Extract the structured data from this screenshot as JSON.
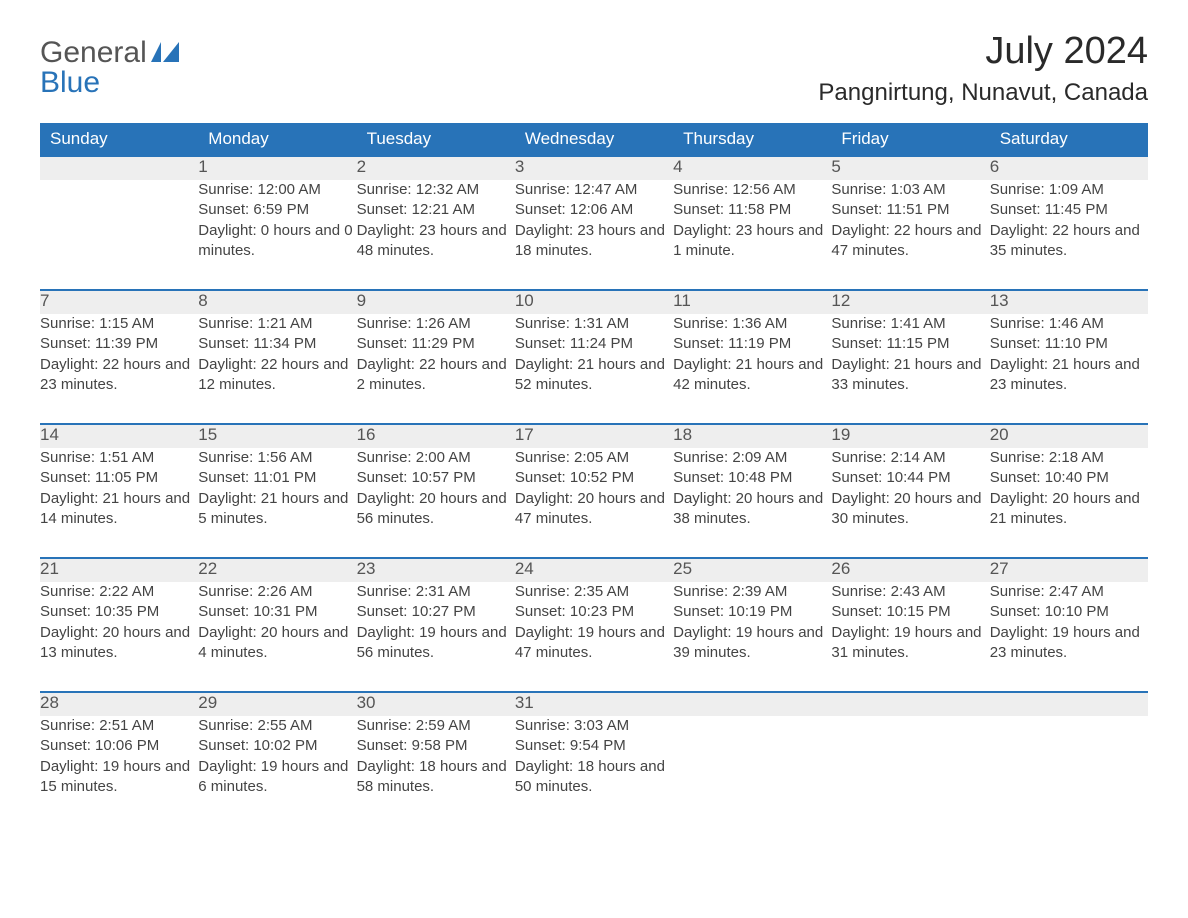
{
  "logo": {
    "word1": "General",
    "word2": "Blue"
  },
  "title": "July 2024",
  "location": "Pangnirtung, Nunavut, Canada",
  "colors": {
    "header_bg": "#2873b8",
    "header_text": "#ffffff",
    "daynum_bg": "#eeeeee",
    "daynum_border": "#2873b8",
    "body_text": "#3a3a3a",
    "page_bg": "#ffffff"
  },
  "day_headers": [
    "Sunday",
    "Monday",
    "Tuesday",
    "Wednesday",
    "Thursday",
    "Friday",
    "Saturday"
  ],
  "weeks": [
    [
      null,
      {
        "n": "1",
        "sunrise": "12:00 AM",
        "sunset": "6:59 PM",
        "daylight": "0 hours and 0 minutes."
      },
      {
        "n": "2",
        "sunrise": "12:32 AM",
        "sunset": "12:21 AM",
        "daylight": "23 hours and 48 minutes."
      },
      {
        "n": "3",
        "sunrise": "12:47 AM",
        "sunset": "12:06 AM",
        "daylight": "23 hours and 18 minutes."
      },
      {
        "n": "4",
        "sunrise": "12:56 AM",
        "sunset": "11:58 PM",
        "daylight": "23 hours and 1 minute."
      },
      {
        "n": "5",
        "sunrise": "1:03 AM",
        "sunset": "11:51 PM",
        "daylight": "22 hours and 47 minutes."
      },
      {
        "n": "6",
        "sunrise": "1:09 AM",
        "sunset": "11:45 PM",
        "daylight": "22 hours and 35 minutes."
      }
    ],
    [
      {
        "n": "7",
        "sunrise": "1:15 AM",
        "sunset": "11:39 PM",
        "daylight": "22 hours and 23 minutes."
      },
      {
        "n": "8",
        "sunrise": "1:21 AM",
        "sunset": "11:34 PM",
        "daylight": "22 hours and 12 minutes."
      },
      {
        "n": "9",
        "sunrise": "1:26 AM",
        "sunset": "11:29 PM",
        "daylight": "22 hours and 2 minutes."
      },
      {
        "n": "10",
        "sunrise": "1:31 AM",
        "sunset": "11:24 PM",
        "daylight": "21 hours and 52 minutes."
      },
      {
        "n": "11",
        "sunrise": "1:36 AM",
        "sunset": "11:19 PM",
        "daylight": "21 hours and 42 minutes."
      },
      {
        "n": "12",
        "sunrise": "1:41 AM",
        "sunset": "11:15 PM",
        "daylight": "21 hours and 33 minutes."
      },
      {
        "n": "13",
        "sunrise": "1:46 AM",
        "sunset": "11:10 PM",
        "daylight": "21 hours and 23 minutes."
      }
    ],
    [
      {
        "n": "14",
        "sunrise": "1:51 AM",
        "sunset": "11:05 PM",
        "daylight": "21 hours and 14 minutes."
      },
      {
        "n": "15",
        "sunrise": "1:56 AM",
        "sunset": "11:01 PM",
        "daylight": "21 hours and 5 minutes."
      },
      {
        "n": "16",
        "sunrise": "2:00 AM",
        "sunset": "10:57 PM",
        "daylight": "20 hours and 56 minutes."
      },
      {
        "n": "17",
        "sunrise": "2:05 AM",
        "sunset": "10:52 PM",
        "daylight": "20 hours and 47 minutes."
      },
      {
        "n": "18",
        "sunrise": "2:09 AM",
        "sunset": "10:48 PM",
        "daylight": "20 hours and 38 minutes."
      },
      {
        "n": "19",
        "sunrise": "2:14 AM",
        "sunset": "10:44 PM",
        "daylight": "20 hours and 30 minutes."
      },
      {
        "n": "20",
        "sunrise": "2:18 AM",
        "sunset": "10:40 PM",
        "daylight": "20 hours and 21 minutes."
      }
    ],
    [
      {
        "n": "21",
        "sunrise": "2:22 AM",
        "sunset": "10:35 PM",
        "daylight": "20 hours and 13 minutes."
      },
      {
        "n": "22",
        "sunrise": "2:26 AM",
        "sunset": "10:31 PM",
        "daylight": "20 hours and 4 minutes."
      },
      {
        "n": "23",
        "sunrise": "2:31 AM",
        "sunset": "10:27 PM",
        "daylight": "19 hours and 56 minutes."
      },
      {
        "n": "24",
        "sunrise": "2:35 AM",
        "sunset": "10:23 PM",
        "daylight": "19 hours and 47 minutes."
      },
      {
        "n": "25",
        "sunrise": "2:39 AM",
        "sunset": "10:19 PM",
        "daylight": "19 hours and 39 minutes."
      },
      {
        "n": "26",
        "sunrise": "2:43 AM",
        "sunset": "10:15 PM",
        "daylight": "19 hours and 31 minutes."
      },
      {
        "n": "27",
        "sunrise": "2:47 AM",
        "sunset": "10:10 PM",
        "daylight": "19 hours and 23 minutes."
      }
    ],
    [
      {
        "n": "28",
        "sunrise": "2:51 AM",
        "sunset": "10:06 PM",
        "daylight": "19 hours and 15 minutes."
      },
      {
        "n": "29",
        "sunrise": "2:55 AM",
        "sunset": "10:02 PM",
        "daylight": "19 hours and 6 minutes."
      },
      {
        "n": "30",
        "sunrise": "2:59 AM",
        "sunset": "9:58 PM",
        "daylight": "18 hours and 58 minutes."
      },
      {
        "n": "31",
        "sunrise": "3:03 AM",
        "sunset": "9:54 PM",
        "daylight": "18 hours and 50 minutes."
      },
      null,
      null,
      null
    ]
  ],
  "labels": {
    "sunrise": "Sunrise: ",
    "sunset": "Sunset: ",
    "daylight": "Daylight: "
  }
}
